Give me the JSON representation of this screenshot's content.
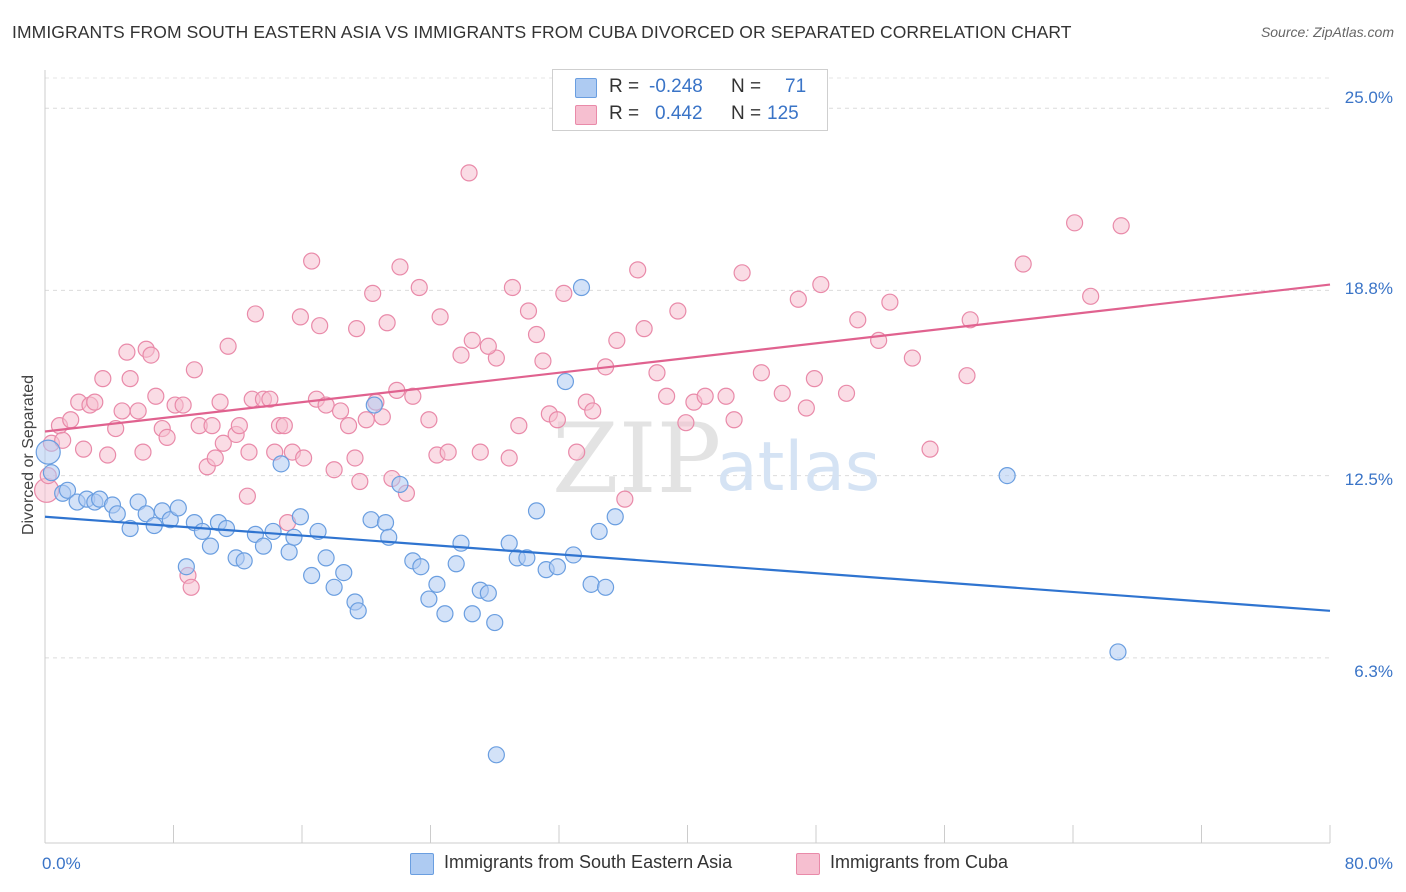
{
  "header": {
    "title": "IMMIGRANTS FROM SOUTH EASTERN ASIA VS IMMIGRANTS FROM CUBA DIVORCED OR SEPARATED CORRELATION CHART",
    "source": "Source: ZipAtlas.com"
  },
  "legend": {
    "blue": {
      "r_label": "R =",
      "r_value": "-0.248",
      "n_label": "N =",
      "n_value": "71"
    },
    "pink": {
      "r_label": "R =",
      "r_value": "0.442",
      "n_label": "N =",
      "n_value": "125"
    }
  },
  "watermark": {
    "zip": "ZIP",
    "atlas": "atlas"
  },
  "colors": {
    "blue_fill": "#aecbf2",
    "blue_stroke": "#6a9ee0",
    "blue_line": "#2f74d0",
    "pink_fill": "#f6bfd0",
    "pink_stroke": "#e98aa9",
    "pink_line": "#e0628f",
    "tick_text": "#3a74c7"
  },
  "chart_data": {
    "type": "scatter",
    "title": "IMMIGRANTS FROM SOUTH EASTERN ASIA VS IMMIGRANTS FROM CUBA DIVORCED OR SEPARATED CORRELATION CHART",
    "xlabel": "",
    "ylabel": "Divorced or Separated",
    "x_ticks": [
      "0.0%",
      "80.0%"
    ],
    "y_ticks": [
      "6.3%",
      "12.5%",
      "18.8%",
      "25.0%"
    ],
    "y_tick_values": [
      6.3,
      12.5,
      18.8,
      25.0
    ],
    "xlim": [
      0,
      80
    ],
    "ylim": [
      0,
      26.3
    ],
    "grid": true,
    "legend_position": "bottom",
    "series": [
      {
        "name": "Immigrants from South Eastern Asia",
        "color": "#aecbf2",
        "trend": [
          [
            0,
            11.1
          ],
          [
            80,
            7.9
          ]
        ],
        "points": [
          [
            0.2,
            13.3
          ],
          [
            0.4,
            12.6
          ],
          [
            1.1,
            11.9
          ],
          [
            1.4,
            12.0
          ],
          [
            2.0,
            11.6
          ],
          [
            2.6,
            11.7
          ],
          [
            3.1,
            11.6
          ],
          [
            3.4,
            11.7
          ],
          [
            4.2,
            11.5
          ],
          [
            4.5,
            11.2
          ],
          [
            5.3,
            10.7
          ],
          [
            5.8,
            11.6
          ],
          [
            6.3,
            11.2
          ],
          [
            6.8,
            10.8
          ],
          [
            7.3,
            11.3
          ],
          [
            7.8,
            11.0
          ],
          [
            8.3,
            11.4
          ],
          [
            8.8,
            9.4
          ],
          [
            9.3,
            10.9
          ],
          [
            9.8,
            10.6
          ],
          [
            10.3,
            10.1
          ],
          [
            10.8,
            10.9
          ],
          [
            11.3,
            10.7
          ],
          [
            11.9,
            9.7
          ],
          [
            12.4,
            9.6
          ],
          [
            13.1,
            10.5
          ],
          [
            13.6,
            10.1
          ],
          [
            14.2,
            10.6
          ],
          [
            14.7,
            12.9
          ],
          [
            15.2,
            9.9
          ],
          [
            15.5,
            10.4
          ],
          [
            15.9,
            11.1
          ],
          [
            16.6,
            9.1
          ],
          [
            17.0,
            10.6
          ],
          [
            17.5,
            9.7
          ],
          [
            18.0,
            8.7
          ],
          [
            18.6,
            9.2
          ],
          [
            19.3,
            8.2
          ],
          [
            19.5,
            7.9
          ],
          [
            20.3,
            11.0
          ],
          [
            20.5,
            14.9
          ],
          [
            21.2,
            10.9
          ],
          [
            21.4,
            10.4
          ],
          [
            22.1,
            12.2
          ],
          [
            22.9,
            9.6
          ],
          [
            23.4,
            9.4
          ],
          [
            23.9,
            8.3
          ],
          [
            24.4,
            8.8
          ],
          [
            24.9,
            7.8
          ],
          [
            25.6,
            9.5
          ],
          [
            25.9,
            10.2
          ],
          [
            26.6,
            7.8
          ],
          [
            27.1,
            8.6
          ],
          [
            27.6,
            8.5
          ],
          [
            28.0,
            7.5
          ],
          [
            28.9,
            10.2
          ],
          [
            29.4,
            9.7
          ],
          [
            30.0,
            9.7
          ],
          [
            30.6,
            11.3
          ],
          [
            31.2,
            9.3
          ],
          [
            31.9,
            9.4
          ],
          [
            32.4,
            15.7
          ],
          [
            32.9,
            9.8
          ],
          [
            33.4,
            18.9
          ],
          [
            34.0,
            8.8
          ],
          [
            34.5,
            10.6
          ],
          [
            34.9,
            8.7
          ],
          [
            35.5,
            11.1
          ],
          [
            59.9,
            12.5
          ],
          [
            66.8,
            6.5
          ],
          [
            28.1,
            3.0
          ]
        ]
      },
      {
        "name": "Immigrants from Cuba",
        "color": "#f6bfd0",
        "trend": [
          [
            0,
            14.0
          ],
          [
            80,
            19.0
          ]
        ],
        "points": [
          [
            0.1,
            12.0
          ],
          [
            0.2,
            12.5
          ],
          [
            0.4,
            13.6
          ],
          [
            0.9,
            14.2
          ],
          [
            1.1,
            13.7
          ],
          [
            1.6,
            14.4
          ],
          [
            2.1,
            15.0
          ],
          [
            2.4,
            13.4
          ],
          [
            2.8,
            14.9
          ],
          [
            3.1,
            15.0
          ],
          [
            3.6,
            15.8
          ],
          [
            3.9,
            13.2
          ],
          [
            4.4,
            14.1
          ],
          [
            4.8,
            14.7
          ],
          [
            5.1,
            16.7
          ],
          [
            5.3,
            15.8
          ],
          [
            5.8,
            14.7
          ],
          [
            6.1,
            13.3
          ],
          [
            6.3,
            16.8
          ],
          [
            6.6,
            16.6
          ],
          [
            6.9,
            15.2
          ],
          [
            7.3,
            14.1
          ],
          [
            7.6,
            13.8
          ],
          [
            8.1,
            14.9
          ],
          [
            8.6,
            14.9
          ],
          [
            8.9,
            9.1
          ],
          [
            9.1,
            8.7
          ],
          [
            9.3,
            16.1
          ],
          [
            9.6,
            14.2
          ],
          [
            10.1,
            12.8
          ],
          [
            10.4,
            14.2
          ],
          [
            10.6,
            13.1
          ],
          [
            10.9,
            15.0
          ],
          [
            11.1,
            13.6
          ],
          [
            11.4,
            16.9
          ],
          [
            11.9,
            13.9
          ],
          [
            12.1,
            14.2
          ],
          [
            12.6,
            11.8
          ],
          [
            12.9,
            15.1
          ],
          [
            13.1,
            18.0
          ],
          [
            13.6,
            15.1
          ],
          [
            14.0,
            15.1
          ],
          [
            14.3,
            13.3
          ],
          [
            14.6,
            14.2
          ],
          [
            15.1,
            10.9
          ],
          [
            15.4,
            13.3
          ],
          [
            15.9,
            17.9
          ],
          [
            16.1,
            13.1
          ],
          [
            16.6,
            19.8
          ],
          [
            16.9,
            15.1
          ],
          [
            17.1,
            17.6
          ],
          [
            17.5,
            14.9
          ],
          [
            18.0,
            12.7
          ],
          [
            18.4,
            14.7
          ],
          [
            18.9,
            14.2
          ],
          [
            19.4,
            17.5
          ],
          [
            19.6,
            12.3
          ],
          [
            20.0,
            14.4
          ],
          [
            20.4,
            18.7
          ],
          [
            20.6,
            15.0
          ],
          [
            21.0,
            14.5
          ],
          [
            21.3,
            17.7
          ],
          [
            21.6,
            12.4
          ],
          [
            21.9,
            15.4
          ],
          [
            22.1,
            19.6
          ],
          [
            22.5,
            11.9
          ],
          [
            22.9,
            15.2
          ],
          [
            23.3,
            18.9
          ],
          [
            23.9,
            14.4
          ],
          [
            24.4,
            13.2
          ],
          [
            24.6,
            17.9
          ],
          [
            25.1,
            13.3
          ],
          [
            25.9,
            16.6
          ],
          [
            26.4,
            22.8
          ],
          [
            26.6,
            17.1
          ],
          [
            27.1,
            13.3
          ],
          [
            28.1,
            16.5
          ],
          [
            28.9,
            13.1
          ],
          [
            29.1,
            18.9
          ],
          [
            29.5,
            14.2
          ],
          [
            30.1,
            18.1
          ],
          [
            30.6,
            17.3
          ],
          [
            31.0,
            16.4
          ],
          [
            31.4,
            14.6
          ],
          [
            31.9,
            14.4
          ],
          [
            32.3,
            18.7
          ],
          [
            33.1,
            13.3
          ],
          [
            33.7,
            15.0
          ],
          [
            34.1,
            14.7
          ],
          [
            34.9,
            16.2
          ],
          [
            35.6,
            17.1
          ],
          [
            36.1,
            11.7
          ],
          [
            36.9,
            19.5
          ],
          [
            37.3,
            17.5
          ],
          [
            38.1,
            16.0
          ],
          [
            38.7,
            15.2
          ],
          [
            39.4,
            18.1
          ],
          [
            39.9,
            14.3
          ],
          [
            40.4,
            15.0
          ],
          [
            41.1,
            15.2
          ],
          [
            42.4,
            15.2
          ],
          [
            42.9,
            14.4
          ],
          [
            43.4,
            19.4
          ],
          [
            44.6,
            16.0
          ],
          [
            45.9,
            15.3
          ],
          [
            46.9,
            18.5
          ],
          [
            47.4,
            14.8
          ],
          [
            47.9,
            15.8
          ],
          [
            48.3,
            19.0
          ],
          [
            49.9,
            15.3
          ],
          [
            50.6,
            17.8
          ],
          [
            51.9,
            17.1
          ],
          [
            52.6,
            18.4
          ],
          [
            54.0,
            16.5
          ],
          [
            55.1,
            13.4
          ],
          [
            57.4,
            15.9
          ],
          [
            57.6,
            17.8
          ],
          [
            60.9,
            19.7
          ],
          [
            64.1,
            21.1
          ],
          [
            65.1,
            18.6
          ],
          [
            67.0,
            21.0
          ],
          [
            12.7,
            13.3
          ],
          [
            14.9,
            14.2
          ],
          [
            19.3,
            13.1
          ],
          [
            27.6,
            16.9
          ]
        ]
      }
    ]
  },
  "bottom_legend": {
    "blue_label": "Immigrants from South Eastern Asia",
    "pink_label": "Immigrants from Cuba"
  }
}
